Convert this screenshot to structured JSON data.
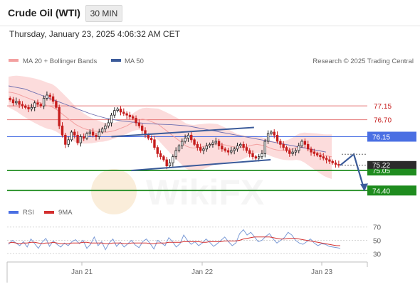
{
  "header": {
    "title": "Crude Oil (WTI)",
    "timeframe": "30 MIN",
    "datetime": "Thursday, January 23, 2025 4:06:32 AM CET"
  },
  "legend": {
    "ma_bb": "MA 20 + Bollinger Bands",
    "ma50": "MA 50",
    "credit": "Research © 2025 Trading Central",
    "rsi": "RSI",
    "ma9": "9MA"
  },
  "watermark": "WikiFX",
  "colors": {
    "bollinger_fill": "#fbd0d0",
    "ma20": "#f3a0a0",
    "ma50": "#6f6fb0",
    "bull_candle": "#ffffff",
    "bear_candle": "#c61d1d",
    "resistance": "#e57777",
    "pivot": "#4a6fe3",
    "support": "#1f8c1f",
    "trendline": "#3b5b9a",
    "rsi_line": "#7a9ad6",
    "rsi_ma": "#d32f2f",
    "price_tag": "#2b2b2b"
  },
  "chart_data": [
    {
      "type": "candlestick",
      "x_labels": [
        "Jan 21",
        "Jan 22",
        "Jan 23"
      ],
      "ylim": [
        73.9,
        78.4
      ],
      "levels": [
        {
          "label": "77.15",
          "value": 77.15,
          "kind": "resistance"
        },
        {
          "label": "76.70",
          "value": 76.7,
          "kind": "resistance"
        },
        {
          "label": "76.15",
          "value": 76.15,
          "kind": "pivot"
        },
        {
          "label": "75.05",
          "value": 75.05,
          "kind": "support"
        },
        {
          "label": "74.40",
          "value": 74.4,
          "kind": "support"
        }
      ],
      "current_price": {
        "label": "75.22",
        "value": 75.22
      },
      "closes": [
        77.35,
        77.25,
        77.3,
        77.2,
        77.15,
        77.1,
        77.05,
        77.1,
        77.25,
        77.2,
        77.15,
        77.4,
        77.5,
        77.45,
        77.3,
        77.1,
        76.5,
        76.2,
        75.9,
        76.05,
        76.3,
        76.2,
        75.95,
        76.15,
        76.1,
        76.25,
        76.3,
        76.2,
        76.15,
        76.3,
        76.4,
        76.5,
        76.6,
        76.85,
        77.0,
        77.05,
        76.95,
        76.9,
        76.85,
        76.8,
        76.75,
        76.6,
        76.5,
        76.35,
        76.2,
        76.1,
        76.05,
        75.8,
        75.6,
        75.5,
        75.4,
        75.2,
        75.3,
        75.5,
        75.7,
        75.85,
        76.0,
        76.1,
        76.2,
        76.05,
        75.9,
        75.8,
        75.7,
        75.75,
        75.85,
        75.9,
        75.95,
        76.0,
        75.85,
        75.75,
        75.7,
        75.65,
        75.7,
        75.75,
        75.85,
        75.9,
        75.8,
        75.7,
        75.6,
        75.5,
        75.45,
        75.5,
        75.6,
        76.0,
        76.25,
        76.3,
        76.2,
        76.0,
        75.9,
        75.8,
        75.7,
        75.6,
        75.65,
        75.7,
        75.85,
        76.0,
        75.9,
        75.75,
        75.65,
        75.6,
        75.55,
        75.5,
        75.45,
        75.4,
        75.35,
        75.3,
        75.25,
        75.22
      ],
      "ma20": [
        77.6,
        77.58,
        77.55,
        77.5,
        77.45,
        77.4,
        77.35,
        77.3,
        77.25,
        77.2,
        77.15,
        77.12,
        77.05,
        76.95,
        76.85,
        76.75,
        76.65,
        76.55,
        76.48,
        76.42,
        76.38,
        76.35,
        76.33,
        76.32,
        76.3,
        76.3,
        76.32,
        76.35,
        76.4,
        76.45,
        76.5,
        76.58,
        76.65,
        76.7,
        76.72,
        76.7,
        76.65,
        76.6,
        76.55,
        76.45,
        76.35,
        76.25,
        76.15,
        76.05,
        75.95,
        75.85,
        75.8,
        75.78,
        75.8,
        75.82,
        75.85,
        75.88,
        75.9,
        75.92,
        75.9,
        75.88,
        75.85,
        75.82,
        75.8,
        75.8,
        75.82,
        75.85,
        75.88,
        75.9,
        75.88,
        75.85,
        75.8,
        75.75,
        75.72,
        75.7,
        75.7,
        75.72,
        75.75,
        75.8,
        75.82,
        75.8,
        75.75,
        75.7,
        75.65,
        75.6,
        75.55,
        75.52,
        75.5
      ],
      "ma50": [
        77.8,
        77.75,
        77.7,
        77.6,
        77.5,
        77.4,
        77.3,
        77.2,
        77.1,
        77.0,
        76.9,
        76.82,
        76.75,
        76.7,
        76.66,
        76.63,
        76.6,
        76.58,
        76.56,
        76.55,
        76.54,
        76.52,
        76.5,
        76.45,
        76.4,
        76.35,
        76.3,
        76.25,
        76.2,
        76.15,
        76.1,
        76.05,
        76.0,
        75.95,
        75.9,
        75.85,
        75.8,
        75.75,
        75.7,
        75.65
      ],
      "trendlines": [
        {
          "from": [
            0.31,
            76.15
          ],
          "to": [
            0.74,
            76.45
          ]
        },
        {
          "from": [
            0.37,
            75.05
          ],
          "to": [
            0.79,
            75.4
          ]
        }
      ],
      "forecast_path": [
        75.22,
        75.58,
        74.4
      ]
    },
    {
      "type": "line",
      "ylim": [
        25,
        75
      ],
      "y_ticks": [
        70,
        50,
        30
      ],
      "series": [
        {
          "name": "RSI",
          "values": [
            44,
            50,
            46,
            42,
            48,
            40,
            52,
            45,
            38,
            47,
            53,
            41,
            49,
            44,
            40,
            46,
            42,
            48,
            51,
            45,
            50,
            38,
            44,
            55,
            42,
            48,
            36,
            46,
            52,
            41,
            47,
            40,
            45,
            50,
            43,
            39,
            48,
            52,
            45,
            37,
            50,
            46,
            42,
            54,
            48,
            40,
            45,
            58,
            50,
            44,
            48,
            42,
            46,
            52,
            47,
            41,
            45,
            50,
            55,
            48,
            42,
            46,
            60,
            66,
            58,
            62,
            55,
            48,
            50,
            56,
            60,
            52,
            46,
            50,
            54,
            62,
            58,
            50,
            46,
            44,
            48,
            52,
            46,
            42,
            45,
            44,
            41,
            40,
            39,
            38
          ]
        },
        {
          "name": "9MA",
          "values": [
            46,
            47,
            46,
            45,
            46,
            46,
            47,
            47,
            46,
            45,
            46,
            46,
            47,
            46,
            45,
            45,
            45,
            46,
            46,
            46,
            47,
            47,
            46,
            46,
            46,
            46,
            45,
            45,
            46,
            46,
            46,
            45,
            45,
            46,
            46,
            46,
            46,
            46,
            45,
            45,
            46,
            46,
            46,
            47,
            47,
            47,
            47,
            48,
            48,
            48,
            48,
            48,
            47,
            47,
            48,
            48,
            48,
            48,
            49,
            49,
            49,
            49,
            50,
            52,
            53,
            54,
            55,
            55,
            55,
            55,
            55,
            54,
            53,
            52,
            52,
            53,
            53,
            53,
            52,
            51,
            50,
            49,
            48,
            47,
            46,
            45,
            44,
            43,
            42,
            42
          ]
        }
      ]
    }
  ]
}
